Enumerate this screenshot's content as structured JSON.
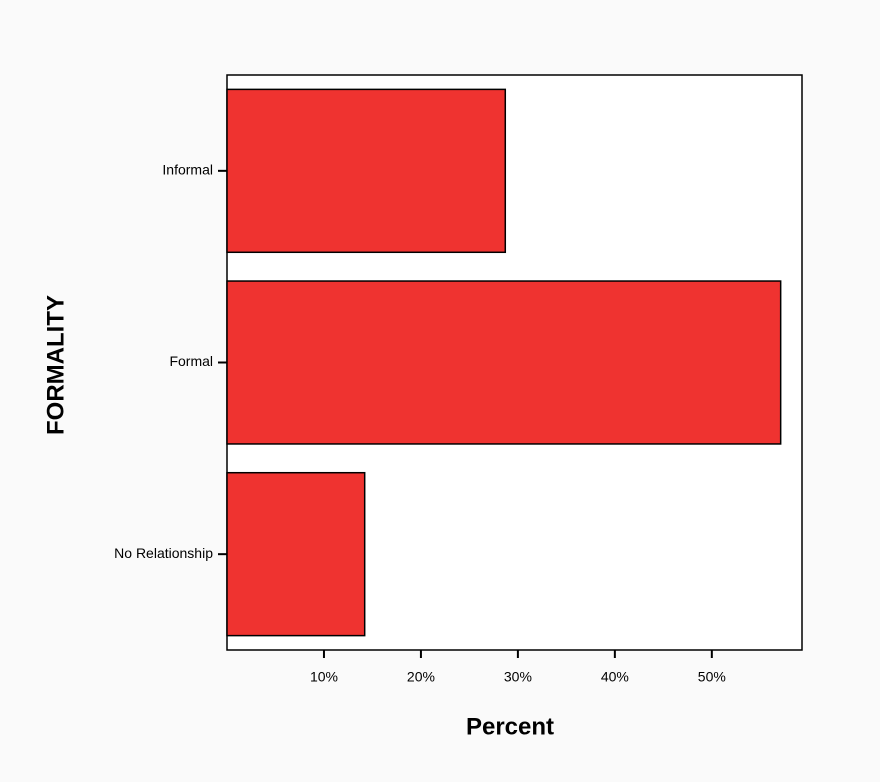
{
  "chart_data": {
    "type": "bar",
    "orientation": "horizontal",
    "x_label": "Percent",
    "y_label": "FORMALITY",
    "categories": [
      "Informal",
      "Formal",
      "No Relationship"
    ],
    "values": [
      28.7,
      57.1,
      14.2
    ],
    "color": "#ef3330",
    "xlim": [
      0,
      59.3
    ],
    "xticks": [
      {
        "value": 10,
        "label": "10%"
      },
      {
        "value": 20,
        "label": "20%"
      },
      {
        "value": 30,
        "label": "30%"
      },
      {
        "value": 40,
        "label": "40%"
      },
      {
        "value": 50,
        "label": "50%"
      }
    ],
    "grid": false
  }
}
